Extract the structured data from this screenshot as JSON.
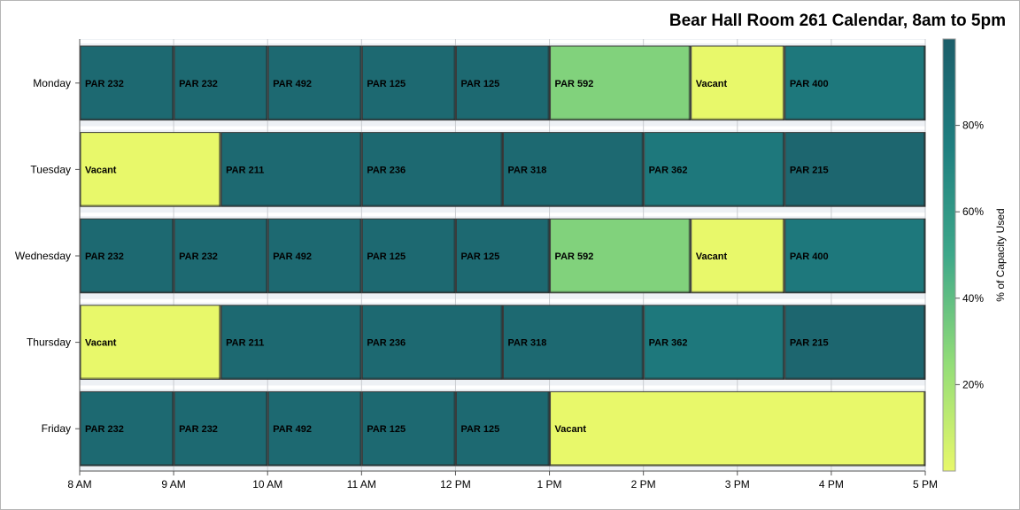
{
  "chart_data": {
    "type": "bar",
    "orientation": "horizontal",
    "title": "Bear Hall Room 261 Calendar, 8am to 5pm",
    "xlabel": "",
    "ylabel": "",
    "x_ticks": [
      "8 AM",
      "9 AM",
      "10 AM",
      "11 AM",
      "12 PM",
      "1 PM",
      "2 PM",
      "3 PM",
      "4 PM",
      "5 PM"
    ],
    "xlim": [
      8,
      17
    ],
    "categories": [
      "Monday",
      "Tuesday",
      "Wednesday",
      "Thursday",
      "Friday"
    ],
    "color_axis": {
      "label": "% of Capacity Used",
      "range": [
        0,
        100
      ],
      "ticks": [
        "20%",
        "40%",
        "60%",
        "80%"
      ],
      "tick_values": [
        20,
        40,
        60,
        80
      ],
      "colors": [
        "#e8f86a",
        "#92dd78",
        "#3ea88a",
        "#1f7f80",
        "#1c5e6a"
      ]
    },
    "grid": true,
    "schedule": [
      {
        "day": "Monday",
        "blocks": [
          {
            "label": "PAR 232",
            "start": 8,
            "end": 9,
            "capacity": 92
          },
          {
            "label": "PAR 232",
            "start": 9,
            "end": 10,
            "capacity": 92
          },
          {
            "label": "PAR 492",
            "start": 10,
            "end": 11,
            "capacity": 92
          },
          {
            "label": "PAR 125",
            "start": 11,
            "end": 12,
            "capacity": 92
          },
          {
            "label": "PAR 125",
            "start": 12,
            "end": 13,
            "capacity": 92
          },
          {
            "label": "PAR 592",
            "start": 13,
            "end": 14.5,
            "capacity": 30
          },
          {
            "label": "Vacant",
            "start": 14.5,
            "end": 15.5,
            "capacity": 0
          },
          {
            "label": "PAR 400",
            "start": 15.5,
            "end": 17,
            "capacity": 80
          }
        ]
      },
      {
        "day": "Tuesday",
        "blocks": [
          {
            "label": "Vacant",
            "start": 8,
            "end": 9.5,
            "capacity": 0
          },
          {
            "label": "PAR 211",
            "start": 9.5,
            "end": 11,
            "capacity": 92
          },
          {
            "label": "PAR 236",
            "start": 11,
            "end": 12.5,
            "capacity": 92
          },
          {
            "label": "PAR 318",
            "start": 12.5,
            "end": 14,
            "capacity": 92
          },
          {
            "label": "PAR 362",
            "start": 14,
            "end": 15.5,
            "capacity": 80
          },
          {
            "label": "PAR 215",
            "start": 15.5,
            "end": 17,
            "capacity": 94
          }
        ]
      },
      {
        "day": "Wednesday",
        "blocks": [
          {
            "label": "PAR 232",
            "start": 8,
            "end": 9,
            "capacity": 92
          },
          {
            "label": "PAR 232",
            "start": 9,
            "end": 10,
            "capacity": 92
          },
          {
            "label": "PAR 492",
            "start": 10,
            "end": 11,
            "capacity": 92
          },
          {
            "label": "PAR 125",
            "start": 11,
            "end": 12,
            "capacity": 92
          },
          {
            "label": "PAR 125",
            "start": 12,
            "end": 13,
            "capacity": 92
          },
          {
            "label": "PAR 592",
            "start": 13,
            "end": 14.5,
            "capacity": 30
          },
          {
            "label": "Vacant",
            "start": 14.5,
            "end": 15.5,
            "capacity": 0
          },
          {
            "label": "PAR 400",
            "start": 15.5,
            "end": 17,
            "capacity": 80
          }
        ]
      },
      {
        "day": "Thursday",
        "blocks": [
          {
            "label": "Vacant",
            "start": 8,
            "end": 9.5,
            "capacity": 0
          },
          {
            "label": "PAR 211",
            "start": 9.5,
            "end": 11,
            "capacity": 92
          },
          {
            "label": "PAR 236",
            "start": 11,
            "end": 12.5,
            "capacity": 92
          },
          {
            "label": "PAR 318",
            "start": 12.5,
            "end": 14,
            "capacity": 92
          },
          {
            "label": "PAR 362",
            "start": 14,
            "end": 15.5,
            "capacity": 80
          },
          {
            "label": "PAR 215",
            "start": 15.5,
            "end": 17,
            "capacity": 94
          }
        ]
      },
      {
        "day": "Friday",
        "blocks": [
          {
            "label": "PAR 232",
            "start": 8,
            "end": 9,
            "capacity": 92
          },
          {
            "label": "PAR 232",
            "start": 9,
            "end": 10,
            "capacity": 92
          },
          {
            "label": "PAR 492",
            "start": 10,
            "end": 11,
            "capacity": 92
          },
          {
            "label": "PAR 125",
            "start": 11,
            "end": 12,
            "capacity": 92
          },
          {
            "label": "PAR 125",
            "start": 12,
            "end": 13,
            "capacity": 92
          },
          {
            "label": "Vacant",
            "start": 13,
            "end": 17,
            "capacity": 0
          }
        ]
      }
    ]
  }
}
